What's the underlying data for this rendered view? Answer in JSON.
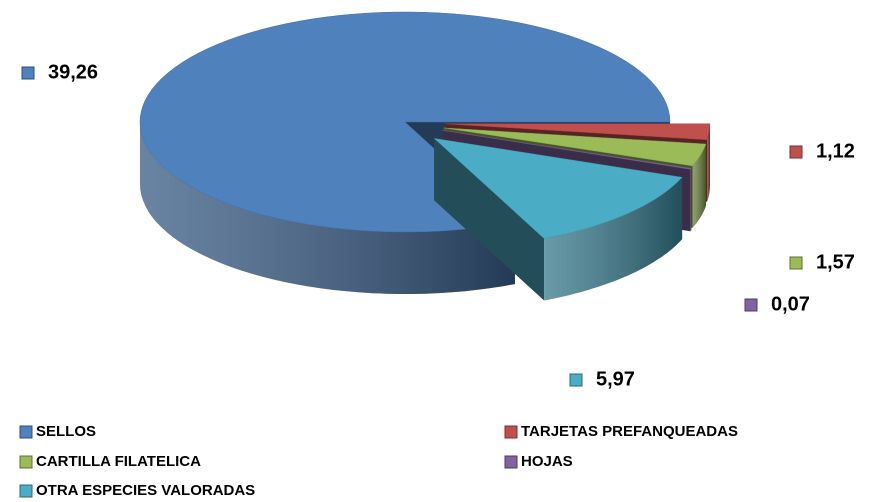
{
  "chart_data": {
    "type": "pie",
    "categories": [
      "SELLOS",
      "TARJETAS PREFANQUEADAS",
      "CARTILLA FILATELICA",
      "HOJAS",
      "OTRA ESPECIES VALORADAS"
    ],
    "values": [
      39.26,
      1.12,
      1.57,
      0.07,
      5.97
    ],
    "value_labels": [
      "39,26",
      "1,12",
      "1,57",
      "0,07",
      "5,97"
    ],
    "colors": [
      "#4f81bd",
      "#c0504d",
      "#9bbb59",
      "#8064a2",
      "#4bacc6"
    ],
    "legend": "bottom"
  }
}
